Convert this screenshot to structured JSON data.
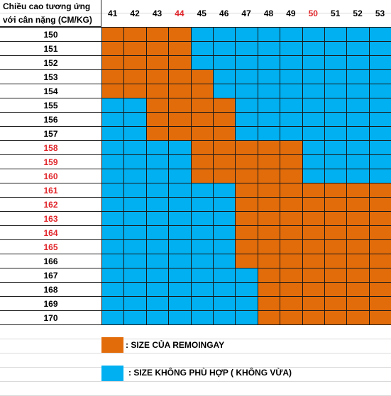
{
  "corner_label": {
    "line1": "Chiều cao tương ứng",
    "line2": "với cân nặng (CM/KG)"
  },
  "columns": [
    "41",
    "42",
    "43",
    "44",
    "45",
    "46",
    "47",
    "48",
    "49",
    "50",
    "51",
    "52",
    "53"
  ],
  "highlighted_columns": [
    "44",
    "50"
  ],
  "rows": [
    "150",
    "151",
    "152",
    "153",
    "154",
    "155",
    "156",
    "157",
    "158",
    "159",
    "160",
    "161",
    "162",
    "163",
    "164",
    "165",
    "166",
    "167",
    "168",
    "169",
    "170"
  ],
  "highlighted_rows": [
    "158",
    "159",
    "160",
    "161",
    "162",
    "163",
    "164",
    "165"
  ],
  "fit_ranges": [
    [
      0,
      3
    ],
    [
      0,
      3
    ],
    [
      0,
      3
    ],
    [
      0,
      4
    ],
    [
      0,
      4
    ],
    [
      2,
      5
    ],
    [
      2,
      5
    ],
    [
      2,
      5
    ],
    [
      4,
      8
    ],
    [
      4,
      8
    ],
    [
      4,
      8
    ],
    [
      6,
      12
    ],
    [
      6,
      12
    ],
    [
      6,
      12
    ],
    [
      6,
      12
    ],
    [
      6,
      12
    ],
    [
      6,
      12
    ],
    [
      7,
      12
    ],
    [
      7,
      12
    ],
    [
      7,
      12
    ],
    [
      7,
      12
    ]
  ],
  "colors": {
    "fit": "#e36c0a",
    "not_fit": "#00b0f0",
    "highlight_text": "#e0262b"
  },
  "legend": {
    "fit_label": ": SIZE CỦA REMOINGAY",
    "not_fit_label": ": SIZE KHÔNG PHÙ HỢP ( KHÔNG VỪA)"
  }
}
